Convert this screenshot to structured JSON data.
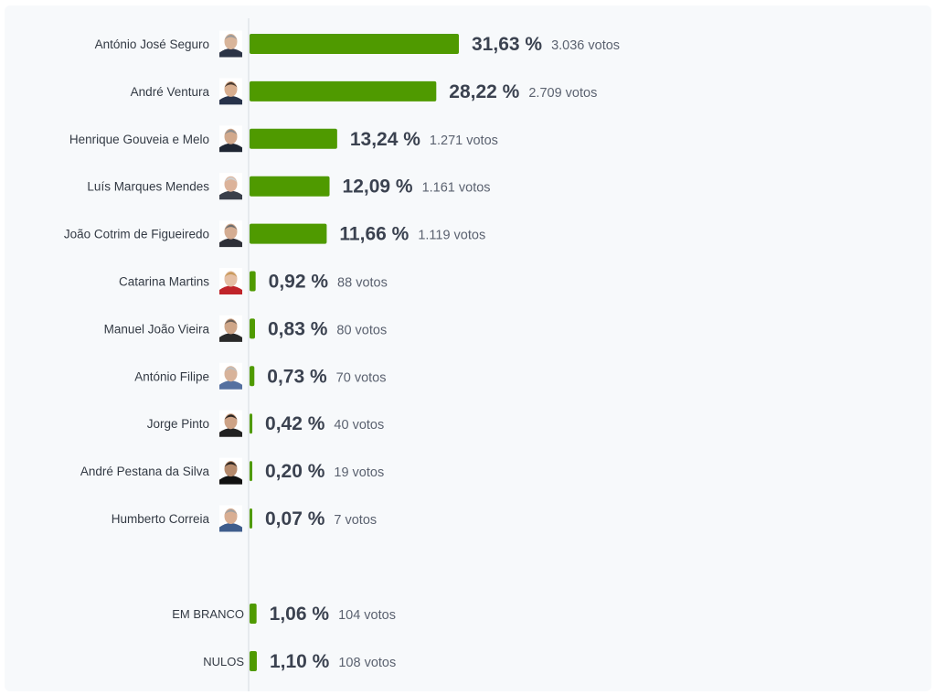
{
  "chart_data": {
    "type": "bar",
    "orientation": "horizontal",
    "grid": false,
    "legend": "none",
    "bar_color": "#4f9a00",
    "categories": [
      "António José Seguro",
      "André Ventura",
      "Henrique Gouveia e Melo",
      "Luís Marques Mendes",
      "João Cotrim de Figueiredo",
      "Catarina Martins",
      "Manuel João Vieira",
      "António Filipe",
      "Jorge Pinto",
      "André Pestana da Silva",
      "Humberto Correia"
    ],
    "values": [
      31.63,
      28.22,
      13.24,
      12.09,
      11.66,
      0.92,
      0.83,
      0.73,
      0.42,
      0.2,
      0.07
    ],
    "value_labels": [
      "31,63 %",
      "28,22 %",
      "13,24 %",
      "12,09 %",
      "11,66 %",
      "0,92 %",
      "0,83 %",
      "0,73 %",
      "0,42 %",
      "0,20 %",
      "0,07 %"
    ],
    "votes": [
      "3.036 votos",
      "2.709 votos",
      "1.271 votos",
      "1.161 votos",
      "1.119 votos",
      "88 votos",
      "80 votos",
      "70 votos",
      "40 votos",
      "19 votos",
      "7 votos"
    ],
    "extra_rows": [
      {
        "label": "EM BRANCO",
        "value": 1.06,
        "value_label": "1,06 %",
        "votes": "104 votos"
      },
      {
        "label": "NULOS",
        "value": 1.1,
        "value_label": "1,10 %",
        "votes": "108 votos"
      }
    ]
  },
  "avatars": [
    {
      "icon": "portrait-icon",
      "skin": "#d9b59a",
      "hair": "#9a9a9a",
      "suit": "#2c3446",
      "bg": "#ffffff"
    },
    {
      "icon": "portrait-icon",
      "skin": "#d8ae8f",
      "hair": "#4a3a30",
      "suit": "#27324a",
      "bg": "#ffffff"
    },
    {
      "icon": "portrait-icon",
      "skin": "#d2a98c",
      "hair": "#8c8c8c",
      "suit": "#1f2633",
      "bg": "#ffffff"
    },
    {
      "icon": "portrait-icon",
      "skin": "#dcb39a",
      "hair": "#cfcfcf",
      "suit": "#3a3f4a",
      "bg": "#ffffff"
    },
    {
      "icon": "portrait-icon",
      "skin": "#d5ad92",
      "hair": "#6e6e6e",
      "suit": "#2e3038",
      "bg": "#ffffff"
    },
    {
      "icon": "portrait-icon",
      "skin": "#e5bfa4",
      "hair": "#c89a5a",
      "suit": "#c0242a",
      "bg": "#ffffff"
    },
    {
      "icon": "portrait-icon",
      "skin": "#cfa688",
      "hair": "#6a5e55",
      "suit": "#2a2a2a",
      "bg": "#ffffff"
    },
    {
      "icon": "portrait-icon",
      "skin": "#d8b39a",
      "hair": "#bdbdbd",
      "suit": "#5570a0",
      "bg": "#ffffff"
    },
    {
      "icon": "portrait-icon",
      "skin": "#cea386",
      "hair": "#2a2420",
      "suit": "#222222",
      "bg": "#ffffff"
    },
    {
      "icon": "portrait-icon",
      "skin": "#b58a6c",
      "hair": "#2a2420",
      "suit": "#111111",
      "bg": "#ffffff"
    },
    {
      "icon": "portrait-icon",
      "skin": "#d9ae92",
      "hair": "#a0a0a0",
      "suit": "#3f5d8c",
      "bg": "#ffffff"
    }
  ]
}
